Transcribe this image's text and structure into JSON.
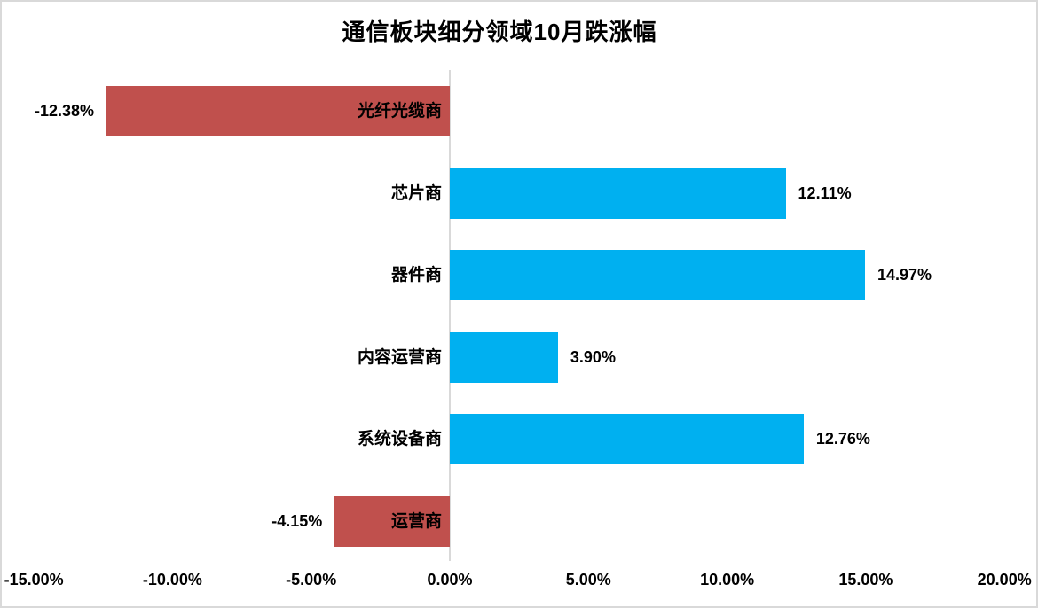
{
  "chart_data": {
    "type": "bar",
    "orientation": "horizontal",
    "title": "通信板块细分领域10月跌涨幅",
    "categories": [
      "光纤光缆商",
      "芯片商",
      "器件商",
      "内容运营商",
      "系统设备商",
      "运营商"
    ],
    "values": [
      -12.38,
      12.11,
      14.97,
      3.9,
      12.76,
      -4.15
    ],
    "value_labels": [
      "-12.38%",
      "12.11%",
      "14.97%",
      "3.90%",
      "12.76%",
      "-4.15%"
    ],
    "x_ticks": [
      {
        "value": -15,
        "label": "-15.00%"
      },
      {
        "value": -10,
        "label": "-10.00%"
      },
      {
        "value": -5,
        "label": "-5.00%"
      },
      {
        "value": 0,
        "label": "0.00%"
      },
      {
        "value": 5,
        "label": "5.00%"
      },
      {
        "value": 10,
        "label": "10.00%"
      },
      {
        "value": 15,
        "label": "15.00%"
      },
      {
        "value": 20,
        "label": "20.00%"
      }
    ],
    "xlim": [
      -15,
      20
    ],
    "grid": "none",
    "legend": "none",
    "colors": {
      "positive_bar": "#00B0F0",
      "negative_bar": "#C0504D",
      "axis_line": "#D9D9D9",
      "frame_border": "#D9D9D9",
      "text": "#000000",
      "background": "#FFFFFF"
    }
  }
}
